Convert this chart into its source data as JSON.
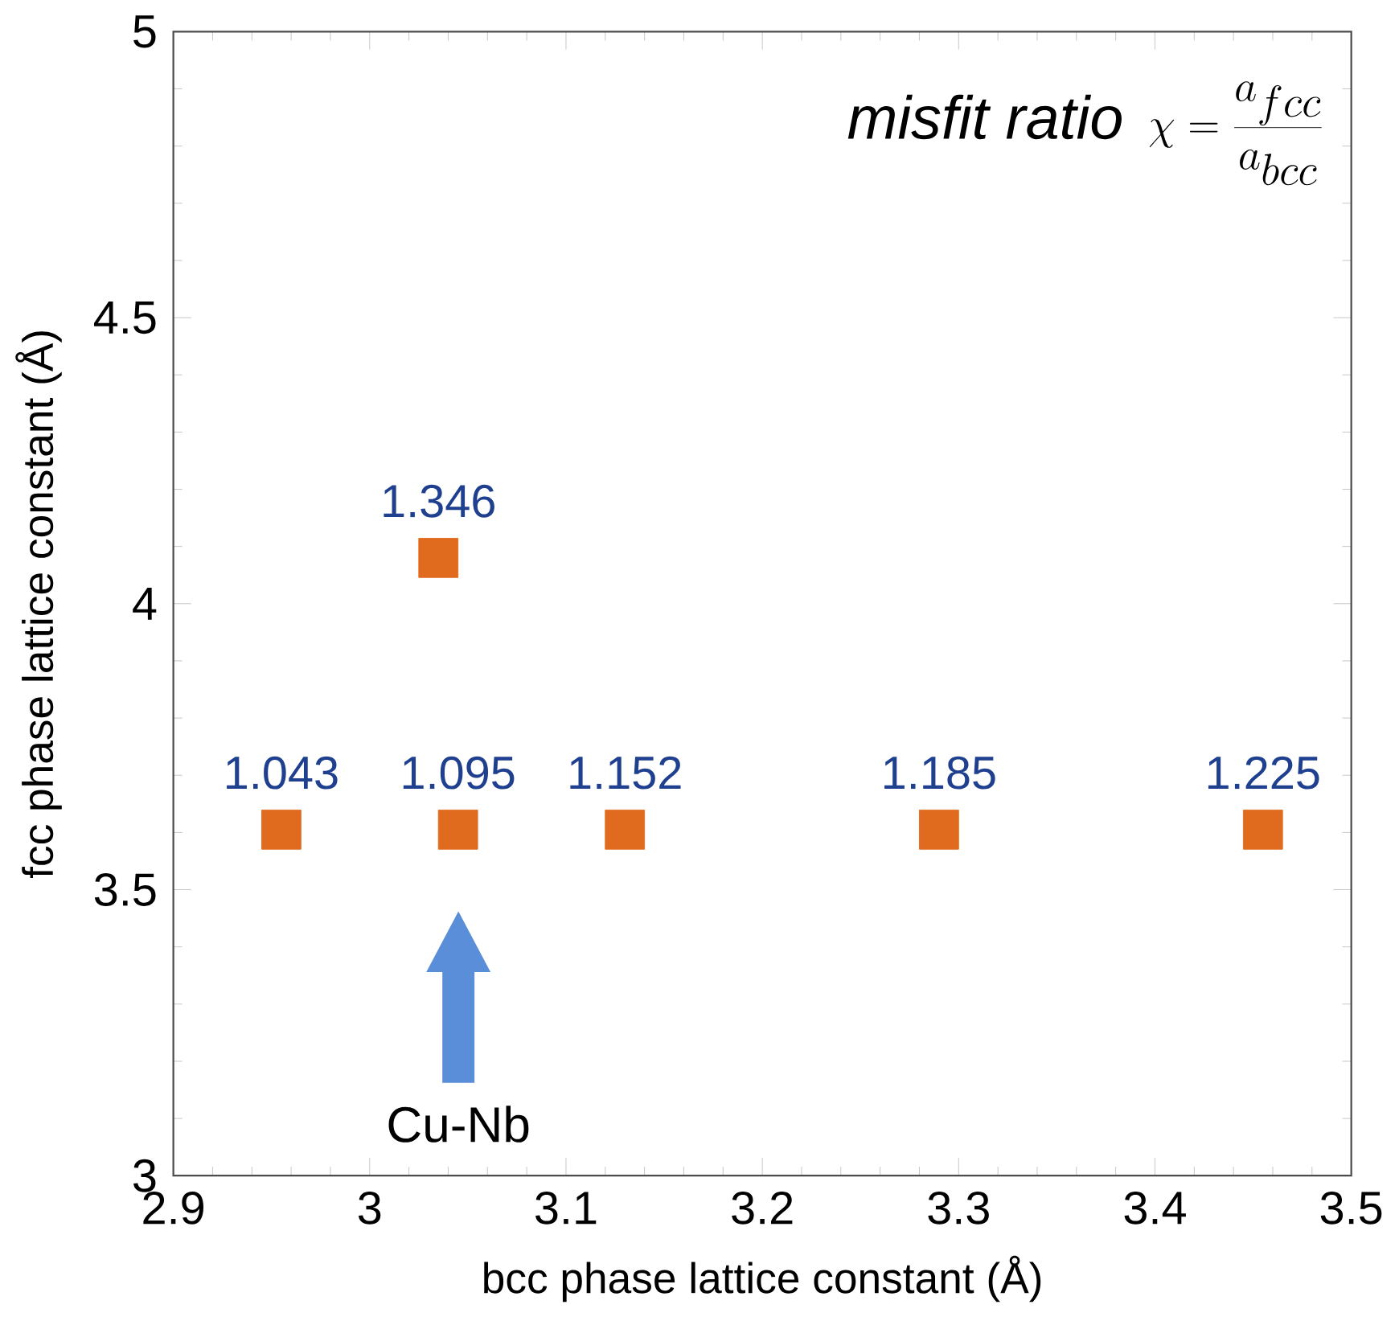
{
  "chart_data": {
    "type": "scatter",
    "title": "\\mathit{misfit\\ ratio}\\;\\; \\chi = \\frac{a_{fcc}}{a_{bcc}}",
    "xlabel": "bcc phase lattice constant (Å)",
    "ylabel": "fcc phase lattice constant (Å)",
    "x": [
      2.955,
      3.035,
      3.045,
      3.13,
      3.29,
      3.455
    ],
    "values": [
      3.605,
      4.08,
      3.605,
      3.605,
      3.605,
      3.605
    ],
    "color": "#e06a1e",
    "marker": "square",
    "annotations": [
      {
        "text": "1.043",
        "x": 2.955,
        "y": 3.605
      },
      {
        "text": "1.346",
        "x": 3.035,
        "y": 4.08
      },
      {
        "text": "1.095",
        "x": 3.045,
        "y": 3.605
      },
      {
        "text": "1.152",
        "x": 3.13,
        "y": 3.605
      },
      {
        "text": "1.185",
        "x": 3.29,
        "y": 3.605
      },
      {
        "text": "1.225",
        "x": 3.455,
        "y": 3.605
      },
      "Cu-Nb"
    ],
    "xlim": [
      2.9,
      3.5
    ],
    "xticks": [
      2.9,
      3,
      3.1,
      3.2,
      3.3,
      3.4,
      3.5
    ],
    "ylim": [
      3,
      5
    ],
    "yticks": [
      3,
      3.5,
      4,
      4.5,
      5
    ],
    "grid": false
  }
}
